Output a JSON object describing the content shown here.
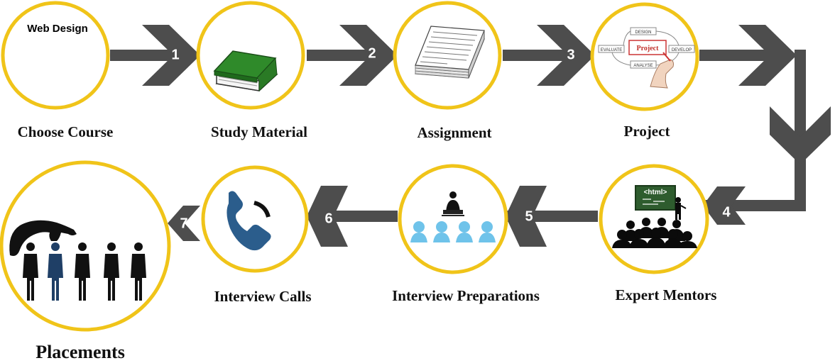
{
  "colors": {
    "ring": "#f0c419",
    "arrow": "#4d4d4d",
    "number": "#ffffff"
  },
  "steps": [
    {
      "number": "1",
      "label": "Choose Course",
      "inner_text": "Web Design",
      "icon": "blank-course-icon"
    },
    {
      "number": "2",
      "label": "Study Material",
      "icon": "green-book-icon"
    },
    {
      "number": "3",
      "label": "Assignment",
      "icon": "paper-stack-icon"
    },
    {
      "number": "",
      "label": "Project",
      "icon": "project-cycle-icon",
      "cycle": {
        "center": "Project",
        "top": "DESIGN",
        "left": "EVALUATE",
        "right": "DEVELOP",
        "bottom": "ANALYSE"
      }
    },
    {
      "number": "4",
      "label": "Expert Mentors",
      "icon": "classroom-icon",
      "board_text": "<html>"
    },
    {
      "number": "5",
      "label": "Interview Preparations",
      "icon": "interview-panel-icon"
    },
    {
      "number": "6",
      "label": "Interview Calls",
      "icon": "phone-icon"
    },
    {
      "number": "7",
      "label": "Placements",
      "icon": "hand-picking-people-icon"
    }
  ]
}
